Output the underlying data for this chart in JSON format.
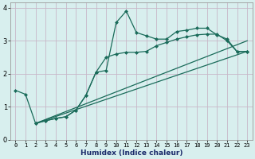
{
  "xlabel": "Humidex (Indice chaleur)",
  "xlim": [
    -0.5,
    23.5
  ],
  "ylim": [
    0,
    4.15
  ],
  "xticks": [
    0,
    1,
    2,
    3,
    4,
    5,
    6,
    7,
    8,
    9,
    10,
    11,
    12,
    13,
    14,
    15,
    16,
    17,
    18,
    19,
    20,
    21,
    22,
    23
  ],
  "yticks": [
    0,
    1,
    2,
    3,
    4
  ],
  "bg_color": "#d8efee",
  "grid_color": "#c8b8c8",
  "line_color": "#1a6b5a",
  "line1_x": [
    0,
    1,
    2,
    3,
    4,
    5,
    6,
    7,
    8,
    9,
    10,
    11,
    12,
    13,
    14,
    15,
    16,
    17,
    18,
    19,
    20,
    21,
    22,
    23
  ],
  "line1_y": [
    1.5,
    1.38,
    0.5,
    0.58,
    0.65,
    0.7,
    0.9,
    1.35,
    2.05,
    2.1,
    3.55,
    3.9,
    3.25,
    3.15,
    3.05,
    3.05,
    3.28,
    3.32,
    3.38,
    3.38,
    3.18,
    3.05,
    2.67,
    2.68
  ],
  "line2_x": [
    2,
    3,
    4,
    5,
    6,
    7,
    8,
    9,
    10,
    11,
    12,
    13,
    14,
    15,
    16,
    17,
    18,
    19,
    20,
    21,
    22,
    23
  ],
  "line2_y": [
    0.5,
    0.58,
    0.65,
    0.7,
    0.9,
    1.35,
    2.05,
    2.5,
    2.6,
    2.65,
    2.65,
    2.68,
    2.85,
    2.95,
    3.05,
    3.12,
    3.18,
    3.2,
    3.2,
    3.0,
    2.67,
    2.68
  ],
  "line3_x": [
    2,
    23
  ],
  "line3_y": [
    0.5,
    2.68
  ],
  "line4_x": [
    2,
    23
  ],
  "line4_y": [
    0.5,
    2.68
  ]
}
